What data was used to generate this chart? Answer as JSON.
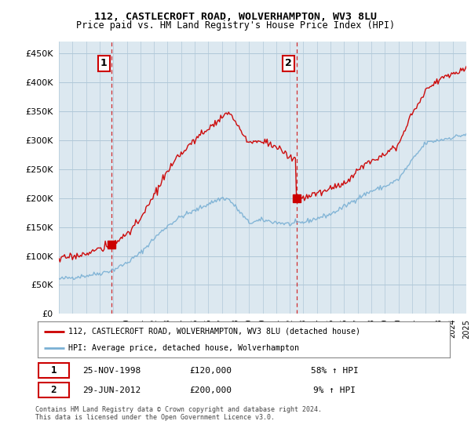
{
  "title_line1": "112, CASTLECROFT ROAD, WOLVERHAMPTON, WV3 8LU",
  "title_line2": "Price paid vs. HM Land Registry's House Price Index (HPI)",
  "ytick_values": [
    0,
    50000,
    100000,
    150000,
    200000,
    250000,
    300000,
    350000,
    400000,
    450000
  ],
  "ylim": [
    0,
    470000
  ],
  "purchase1_date": "25-NOV-1998",
  "purchase1_price": 120000,
  "purchase1_pct": "58% ↑ HPI",
  "purchase1_x": 1998.9,
  "purchase1_y": 120000,
  "purchase2_date": "29-JUN-2012",
  "purchase2_price": 200000,
  "purchase2_pct": "9% ↑ HPI",
  "purchase2_x": 2012.5,
  "purchase2_y": 200000,
  "legend_line1": "112, CASTLECROFT ROAD, WOLVERHAMPTON, WV3 8LU (detached house)",
  "legend_line2": "HPI: Average price, detached house, Wolverhampton",
  "footnote": "Contains HM Land Registry data © Crown copyright and database right 2024.\nThis data is licensed under the Open Government Licence v3.0.",
  "line_color_red": "#cc0000",
  "line_color_blue": "#7ab0d4",
  "vline_color": "#cc0000",
  "background_color": "#ffffff",
  "chart_bg_color": "#dce8f0",
  "grid_color": "#b0c8d8",
  "xmin": 1995.0,
  "xmax": 2025.0
}
